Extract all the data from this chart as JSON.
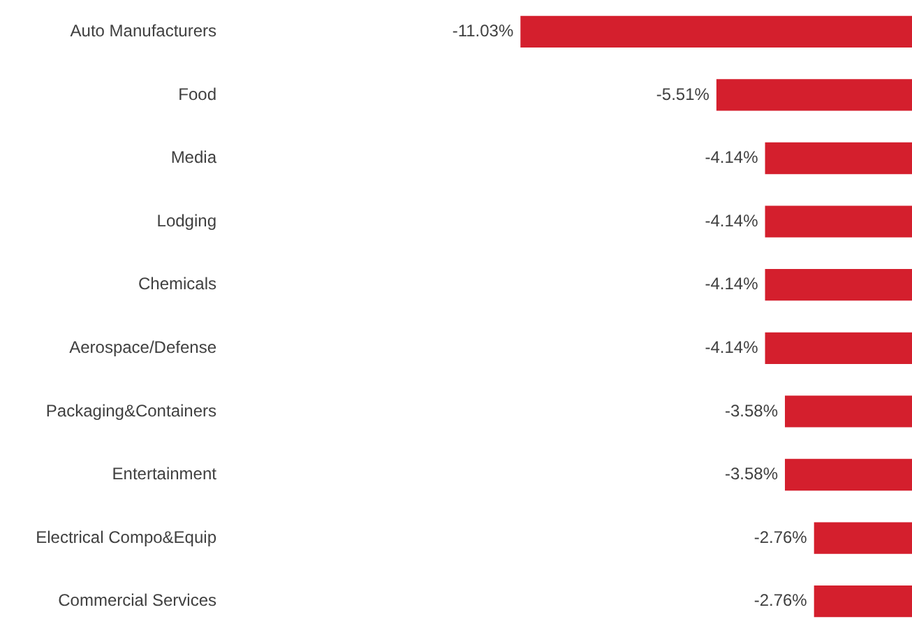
{
  "chart_data": {
    "type": "bar",
    "orientation": "horizontal",
    "categories": [
      "Auto Manufacturers",
      "Food",
      "Media",
      "Lodging",
      "Chemicals",
      "Aerospace/Defense",
      "Packaging&Containers",
      "Entertainment",
      "Electrical Compo&Equip",
      "Commercial Services"
    ],
    "values": [
      -11.03,
      -5.51,
      -4.14,
      -4.14,
      -4.14,
      -4.14,
      -3.58,
      -3.58,
      -2.76,
      -2.76
    ],
    "value_labels": [
      "-11.03%",
      "-5.51%",
      "-4.14%",
      "-4.14%",
      "-4.14%",
      "-4.14%",
      "-3.58%",
      "-3.58%",
      "-2.76%",
      "-2.76%"
    ],
    "color": "#d41f2d"
  }
}
